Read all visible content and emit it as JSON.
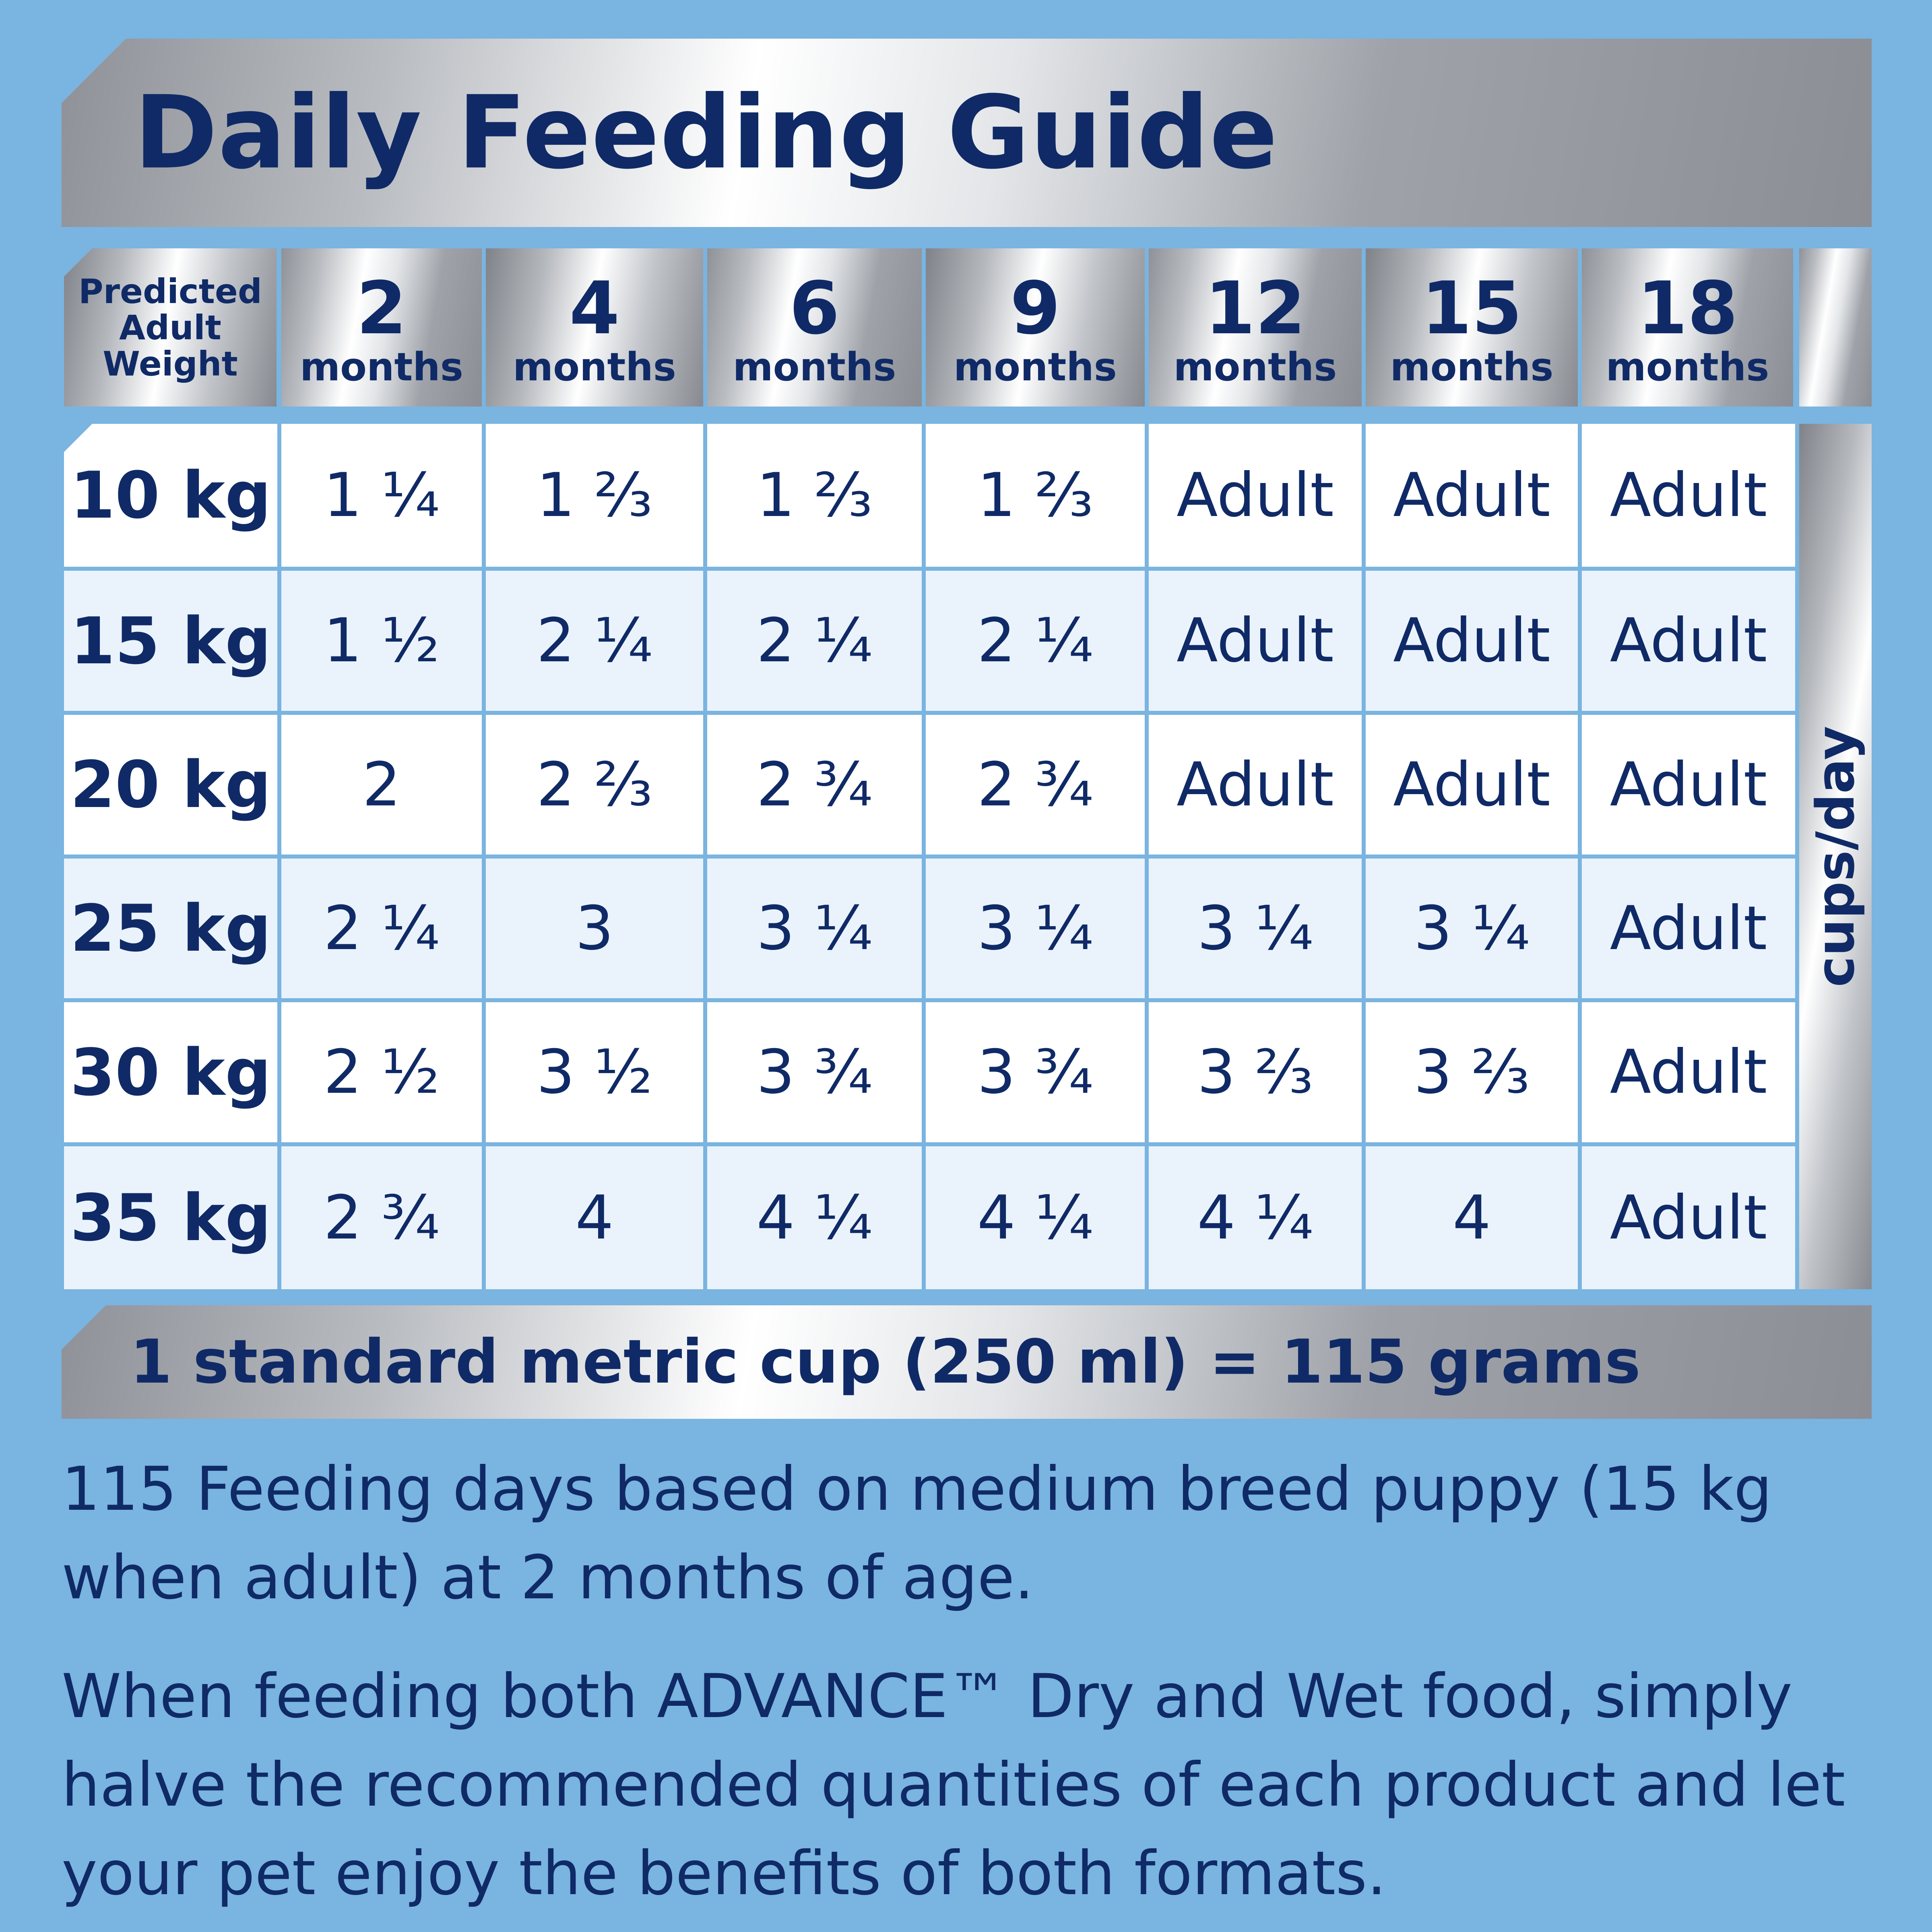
{
  "title": "Daily Feeding Guide",
  "weight_header": "Predicted\nAdult\nWeight",
  "columns": [
    {
      "num": "2",
      "unit": "months"
    },
    {
      "num": "4",
      "unit": "months"
    },
    {
      "num": "6",
      "unit": "months"
    },
    {
      "num": "9",
      "unit": "months"
    },
    {
      "num": "12",
      "unit": "months"
    },
    {
      "num": "15",
      "unit": "months"
    },
    {
      "num": "18",
      "unit": "months"
    }
  ],
  "rows": [
    {
      "weight": "10 kg",
      "values": [
        "1 ¼",
        "1 ⅔",
        "1 ⅔",
        "1 ⅔",
        "Adult",
        "Adult",
        "Adult"
      ]
    },
    {
      "weight": "15 kg",
      "values": [
        "1 ½",
        "2 ¼",
        "2 ¼",
        "2 ¼",
        "Adult",
        "Adult",
        "Adult"
      ]
    },
    {
      "weight": "20 kg",
      "values": [
        "2",
        "2 ⅔",
        "2 ¾",
        "2 ¾",
        "Adult",
        "Adult",
        "Adult"
      ]
    },
    {
      "weight": "25 kg",
      "values": [
        "2 ¼",
        "3",
        "3 ¼",
        "3 ¼",
        "3 ¼",
        "3 ¼",
        "Adult"
      ]
    },
    {
      "weight": "30 kg",
      "values": [
        "2 ½",
        "3 ½",
        "3 ¾",
        "3 ¾",
        "3 ⅔",
        "3 ⅔",
        "Adult"
      ]
    },
    {
      "weight": "35 kg",
      "values": [
        "2 ¾",
        "4",
        "4 ¼",
        "4 ¼",
        "4 ¼",
        "4",
        "Adult"
      ]
    }
  ],
  "unit_label": "cups/day",
  "cup_note": "1 standard metric cup (250 ml) = 115 grams",
  "note_1": "115 Feeding days based on medium breed puppy (15 kg when adult) at 2 months of age.",
  "note_2": "When feeding both ADVANCE™ Dry and Wet food, simply halve the recommended quantities of each product and let your pet enjoy the benefits of both formats.",
  "colors": {
    "background": "#7ab4e0",
    "text": "#0f2a66",
    "row_odd": "#ffffff",
    "row_even": "#eaf3fc"
  }
}
